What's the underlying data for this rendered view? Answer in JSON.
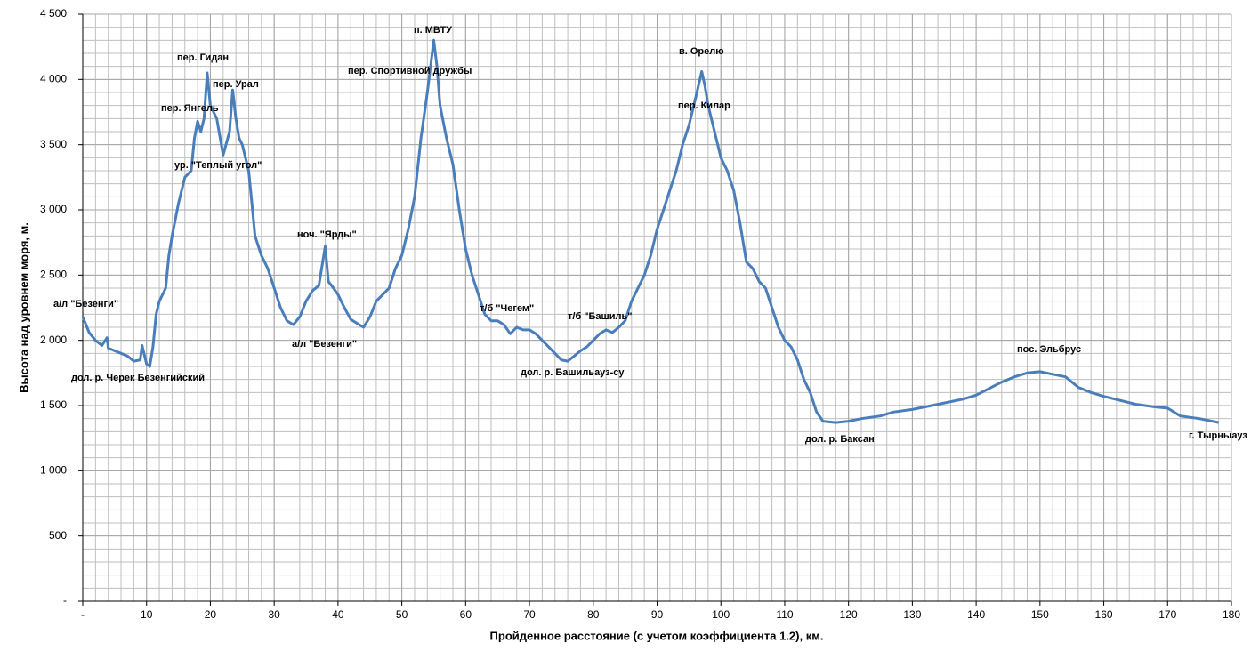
{
  "chart_data": {
    "type": "line",
    "x_label": "Пройденное расстояние (с учетом коэффициента 1.2), км.",
    "y_label": "Высота над уровнем моря, м.",
    "xlim": [
      0,
      180
    ],
    "ylim": [
      0,
      4500
    ],
    "xticks": [
      {
        "value": 0,
        "label": "-"
      },
      10,
      20,
      30,
      40,
      50,
      60,
      70,
      80,
      90,
      100,
      110,
      120,
      130,
      140,
      150,
      160,
      170,
      180
    ],
    "yticks": [
      {
        "value": 0,
        "label": "-"
      },
      500,
      {
        "value": 1000,
        "label": "1 000"
      },
      {
        "value": 1500,
        "label": "1 500"
      },
      {
        "value": 2000,
        "label": "2 000"
      },
      {
        "value": 2500,
        "label": "2 500"
      },
      {
        "value": 3000,
        "label": "3 000"
      },
      {
        "value": 3500,
        "label": "3 500"
      },
      {
        "value": 4000,
        "label": "4 000"
      },
      {
        "value": 4500,
        "label": "4 500"
      }
    ],
    "grid": true,
    "minor_grid": {
      "x": 2,
      "y": 100
    },
    "annotations": [
      "а/л \"Безенги\"",
      "дол. р. Черек Безенгийский",
      "пер. Янгель",
      "пер. Гидан",
      "пер. Урал",
      "ур. \"Теплый угол\"",
      "ноч. \"Ярды\"",
      "а/л \"Безенги\"",
      "п. МВТУ",
      "пер. Спортивной дружбы",
      "т/б \"Чегем\"",
      "т/б \"Башиль\"",
      "дол. р. Башильауз-су",
      "в. Орелю",
      "пер. Килар",
      "дол. р. Баксан",
      "пос. Эльбрус",
      "г. Тырныауз"
    ],
    "series": [
      {
        "color": "#4a7ebb",
        "x": [
          0,
          1,
          2,
          3,
          3.8,
          4,
          5,
          6,
          7,
          8,
          9,
          9.3,
          10,
          10.5,
          11,
          11.5,
          12,
          13,
          13.5,
          14,
          15,
          16,
          17,
          17.5,
          18,
          18.5,
          19,
          19.5,
          20,
          21,
          22,
          23,
          23.5,
          24,
          24.5,
          25,
          26,
          26.5,
          27,
          28,
          29,
          30,
          31,
          32,
          33,
          34,
          35,
          36,
          37,
          38,
          38.5,
          39,
          40,
          41,
          42,
          43,
          44,
          45,
          46,
          47,
          48,
          49,
          50,
          51,
          52,
          53,
          54,
          55,
          55.5,
          56,
          57,
          58,
          59,
          60,
          61,
          62,
          63,
          64,
          65,
          66,
          67,
          68,
          69,
          70,
          71,
          72,
          73,
          74,
          75,
          76,
          77,
          78,
          79,
          80,
          81,
          82,
          83,
          84,
          85,
          86,
          87,
          88,
          89,
          90,
          91,
          92,
          93,
          94,
          95,
          96,
          97,
          97.5,
          98,
          99,
          100,
          101,
          102,
          103,
          104,
          105,
          106,
          107,
          108,
          109,
          110,
          111,
          112,
          113,
          114,
          115,
          116,
          118,
          120,
          122,
          125,
          127,
          130,
          135,
          138,
          140,
          142,
          144,
          146,
          148,
          150,
          152,
          154,
          156,
          158,
          160,
          165,
          168,
          170,
          172,
          175,
          178
        ],
        "values": [
          2180,
          2060,
          2000,
          1960,
          2020,
          1940,
          1920,
          1900,
          1880,
          1840,
          1850,
          1960,
          1820,
          1800,
          1950,
          2200,
          2300,
          2400,
          2650,
          2800,
          3050,
          3250,
          3300,
          3550,
          3680,
          3600,
          3700,
          4050,
          3800,
          3700,
          3420,
          3600,
          3920,
          3700,
          3550,
          3500,
          3300,
          3050,
          2800,
          2650,
          2550,
          2400,
          2250,
          2150,
          2120,
          2180,
          2300,
          2380,
          2420,
          2720,
          2450,
          2420,
          2350,
          2250,
          2160,
          2130,
          2100,
          2180,
          2300,
          2350,
          2400,
          2550,
          2650,
          2850,
          3100,
          3550,
          3900,
          4300,
          4100,
          3800,
          3550,
          3350,
          3000,
          2700,
          2500,
          2350,
          2200,
          2150,
          2150,
          2120,
          2050,
          2100,
          2080,
          2080,
          2050,
          2000,
          1950,
          1900,
          1850,
          1840,
          1880,
          1920,
          1950,
          2000,
          2050,
          2080,
          2060,
          2100,
          2150,
          2300,
          2400,
          2500,
          2650,
          2850,
          3000,
          3150,
          3300,
          3500,
          3650,
          3850,
          4060,
          3950,
          3800,
          3600,
          3400,
          3300,
          3150,
          2900,
          2600,
          2550,
          2450,
          2400,
          2250,
          2100,
          2000,
          1950,
          1850,
          1700,
          1600,
          1450,
          1380,
          1370,
          1380,
          1400,
          1420,
          1450,
          1470,
          1520,
          1550,
          1580,
          1630,
          1680,
          1720,
          1750,
          1760,
          1740,
          1720,
          1640,
          1600,
          1570,
          1510,
          1490,
          1480,
          1420,
          1400,
          1370
        ]
      }
    ]
  }
}
